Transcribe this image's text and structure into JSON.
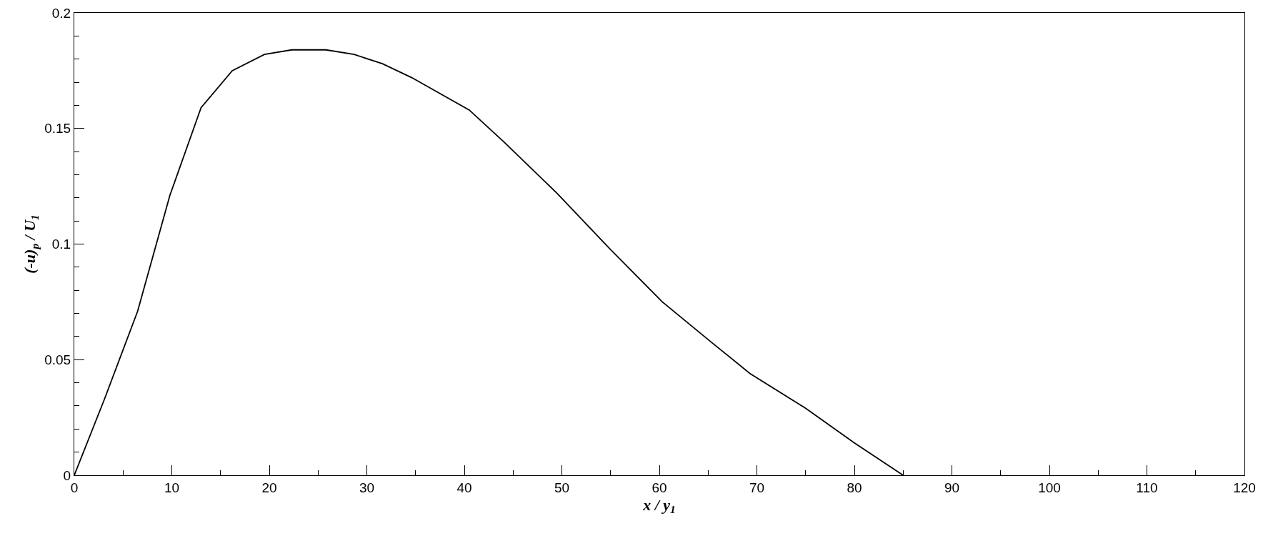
{
  "chart_data": {
    "type": "line",
    "xlabel": "x / y$_{1}$",
    "ylabel": "(-u)$_{p}$ / U$_{1}$",
    "series": [
      {
        "color": "#000000",
        "x": [
          0,
          3.1,
          6.5,
          9.8,
          13.0,
          16.2,
          19.5,
          22.3,
          25.8,
          28.7,
          31.6,
          34.6,
          40.5,
          44.1,
          49.5,
          54.9,
          60.3,
          65.2,
          69.3,
          75,
          80,
          85
        ],
        "values": [
          0,
          0.033,
          0.071,
          0.121,
          0.159,
          0.175,
          0.182,
          0.184,
          0.184,
          0.182,
          0.178,
          0.172,
          0.158,
          0.144,
          0.122,
          0.098,
          0.075,
          0.058,
          0.044,
          0.029,
          0.014,
          0
        ]
      }
    ],
    "xlim": [
      0,
      120
    ],
    "ylim": [
      0,
      0.2
    ],
    "xticks": [
      0,
      {
        "value": 5,
        "label": null
      },
      10,
      {
        "value": 15,
        "label": null
      },
      20,
      {
        "value": 25,
        "label": null
      },
      30,
      {
        "value": 35,
        "label": null
      },
      40,
      {
        "value": 45,
        "label": null
      },
      50,
      {
        "value": 55,
        "label": null
      },
      60,
      {
        "value": 65,
        "label": null
      },
      70,
      {
        "value": 75,
        "label": null
      },
      80,
      {
        "value": 85,
        "label": null
      },
      90,
      {
        "value": 95,
        "label": null
      },
      100,
      {
        "value": 105,
        "label": null
      },
      110,
      {
        "value": 115,
        "label": null
      },
      120
    ],
    "yticks": [
      0,
      {
        "value": 0.01,
        "label": null
      },
      {
        "value": 0.02,
        "label": null
      },
      {
        "value": 0.03,
        "label": null
      },
      {
        "value": 0.04,
        "label": null
      },
      0.05,
      {
        "value": 0.06,
        "label": null
      },
      {
        "value": 0.07,
        "label": null
      },
      {
        "value": 0.08,
        "label": null
      },
      {
        "value": 0.09,
        "label": null
      },
      0.1,
      {
        "value": 0.11,
        "label": null
      },
      {
        "value": 0.12,
        "label": null
      },
      {
        "value": 0.13,
        "label": null
      },
      {
        "value": 0.14,
        "label": null
      },
      0.15,
      {
        "value": 0.16,
        "label": null
      },
      {
        "value": 0.17,
        "label": null
      },
      {
        "value": 0.18,
        "label": null
      },
      {
        "value": 0.19,
        "label": null
      },
      0.2
    ],
    "grid": false,
    "marker": "none",
    "line_style": "solid"
  }
}
